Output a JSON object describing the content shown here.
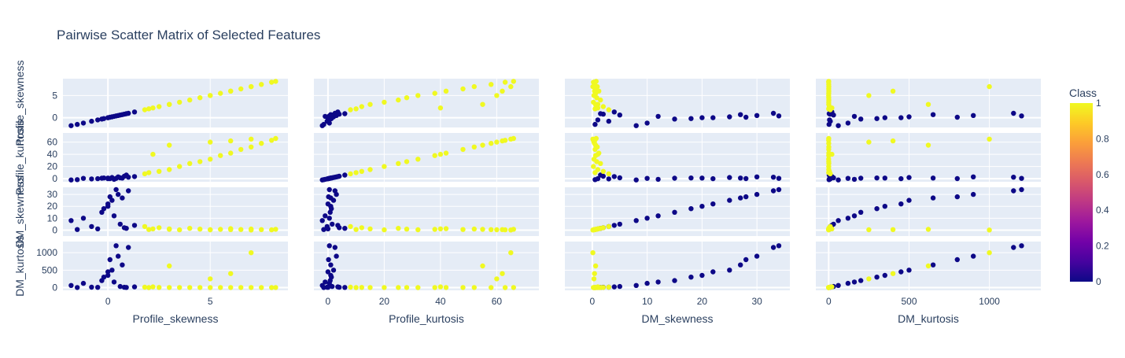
{
  "chart_data": {
    "type": "scatter",
    "title": "Pairwise Scatter Matrix of Selected Features",
    "dimensions": [
      "Profile_skewness",
      "Profile_kurtosis",
      "DM_skewness",
      "DM_kurtosis"
    ],
    "ranges": {
      "Profile_skewness": [
        -2.2,
        8.8
      ],
      "Profile_kurtosis": [
        -5,
        75
      ],
      "DM_skewness": [
        -5,
        36
      ],
      "DM_kurtosis": [
        -80,
        1320
      ]
    },
    "ticks": {
      "Profile_skewness": [
        0,
        5
      ],
      "Profile_kurtosis": [
        0,
        20,
        40,
        60
      ],
      "DM_skewness": [
        0,
        10,
        20,
        30
      ],
      "DM_kurtosis": [
        0,
        500,
        1000
      ]
    },
    "y_ticks": {
      "Profile_skewness": [
        0,
        5
      ],
      "Profile_kurtosis": [
        0,
        20,
        40,
        60
      ],
      "DM_skewness": [
        0,
        10,
        20,
        30
      ],
      "DM_kurtosis": [
        0,
        500,
        1000
      ]
    },
    "grid": true,
    "colorbar": {
      "title": "Class",
      "range": [
        0,
        1
      ],
      "ticks": [
        "0",
        "0.2",
        "0.4",
        "0.6",
        "0.8",
        "1"
      ],
      "colors": [
        "#0d0887",
        "#46039f",
        "#7201a8",
        "#9c179e",
        "#bd3786",
        "#d8576b",
        "#ed7953",
        "#fb9f3a",
        "#fdca26",
        "#f0f921"
      ]
    },
    "classes": [
      {
        "name": "0",
        "color": "#0d0887",
        "points": [
          [
            -1.8,
            -2.0,
            8.0,
            60.0
          ],
          [
            -1.2,
            0.5,
            10.0,
            120.0
          ],
          [
            -0.8,
            -0.3,
            3.0,
            10.0
          ],
          [
            -0.5,
            0.0,
            1.0,
            5.0
          ],
          [
            -0.3,
            0.8,
            15.0,
            200.0
          ],
          [
            0.0,
            1.0,
            20.0,
            350.0
          ],
          [
            0.2,
            2.0,
            25.0,
            500.0
          ],
          [
            0.3,
            -1.0,
            12.0,
            160.0
          ],
          [
            0.5,
            3.0,
            30.0,
            900.0
          ],
          [
            0.6,
            1.5,
            5.0,
            30.0
          ],
          [
            0.8,
            4.0,
            2.0,
            8.0
          ],
          [
            1.0,
            2.5,
            33.0,
            1150.0
          ],
          [
            0.1,
            0.2,
            28.0,
            800.0
          ],
          [
            -0.2,
            1.2,
            18.0,
            300.0
          ],
          [
            0.4,
            0.5,
            34.0,
            1200.0
          ],
          [
            0.9,
            6.0,
            1.5,
            3.0
          ],
          [
            1.3,
            3.5,
            4.0,
            20.0
          ],
          [
            0.0,
            0.0,
            22.0,
            450.0
          ],
          [
            -1.5,
            -1.5,
            0.5,
            2.0
          ],
          [
            0.7,
            1.0,
            27.0,
            650.0
          ]
        ]
      },
      {
        "name": "1",
        "color": "#f0f921",
        "points": [
          [
            2.0,
            10.0,
            0.5,
            0.0
          ],
          [
            3.0,
            15.0,
            1.0,
            0.5
          ],
          [
            3.5,
            20.0,
            0.2,
            0.2
          ],
          [
            4.0,
            25.0,
            1.5,
            1.0
          ],
          [
            4.5,
            28.0,
            0.8,
            0.5
          ],
          [
            5.0,
            32.0,
            0.3,
            0.0
          ],
          [
            5.5,
            38.0,
            0.6,
            0.3
          ],
          [
            6.0,
            42.0,
            1.2,
            0.8
          ],
          [
            6.5,
            48.0,
            0.5,
            0.4
          ],
          [
            7.0,
            52.0,
            0.9,
            0.6
          ],
          [
            7.5,
            58.0,
            0.4,
            0.1
          ],
          [
            8.0,
            63.0,
            0.2,
            0.0
          ],
          [
            8.2,
            66.0,
            0.7,
            0.5
          ],
          [
            2.5,
            12.0,
            2.0,
            4.0
          ],
          [
            1.8,
            8.0,
            3.0,
            10.0
          ],
          [
            2.2,
            40.0,
            1.0,
            20.0
          ],
          [
            5.0,
            60.0,
            0.3,
            250.0
          ],
          [
            6.0,
            62.0,
            0.4,
            400.0
          ],
          [
            3.0,
            55.0,
            0.6,
            620.0
          ],
          [
            7.0,
            65.0,
            0.1,
            1000.0
          ]
        ]
      }
    ]
  }
}
